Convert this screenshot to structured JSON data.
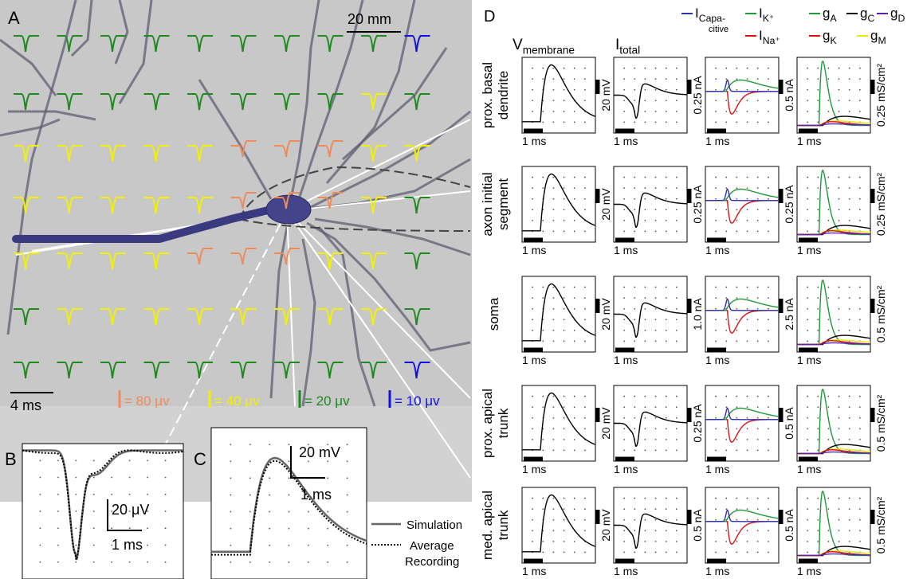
{
  "panel_a": {
    "label": "A",
    "scale_length": "20 mm",
    "scale_time": "4 ms",
    "amplitude_scales": [
      {
        "label": "= 80 μv",
        "color": "#f08a5a"
      },
      {
        "label": "= 40 μv",
        "color": "#f2f200"
      },
      {
        "label": "= 20 μv",
        "color": "#1e8a1e"
      },
      {
        "label": "= 10 μv",
        "color": "#1010e0"
      }
    ]
  },
  "panel_b": {
    "label": "B",
    "scale_amplitude": "20 μV",
    "scale_time": "1 ms"
  },
  "panel_c": {
    "label": "C",
    "scale_amplitude": "20 mV",
    "scale_time": "1 ms"
  },
  "legend_bc": {
    "simulation": "Simulation",
    "recording": [
      "Average",
      "Recording"
    ]
  },
  "panel_d": {
    "label": "D",
    "time_scale": "1 ms",
    "columns": [
      {
        "main": "V",
        "sub": "membrane"
      },
      {
        "main": "I",
        "sub": "total"
      }
    ],
    "legend": [
      {
        "main": "I",
        "sub": "Capa-",
        "sub2": "citive",
        "color": "#3030b0"
      },
      {
        "main": "I",
        "sub": "K⁺",
        "color": "#1e9a3a"
      },
      {
        "main": "I",
        "sub": "Na⁺",
        "color": "#e01010"
      },
      {
        "main": "g",
        "sub": "A",
        "color": "#1e9a3a"
      },
      {
        "main": "g",
        "sub": "C",
        "color": "#000000"
      },
      {
        "main": "g",
        "sub": "D",
        "color": "#6020b0"
      },
      {
        "main": "g",
        "sub": "K",
        "color": "#e01010"
      },
      {
        "main": "g",
        "sub": "M",
        "color": "#e8e800"
      }
    ],
    "rows": [
      {
        "label": [
          "prox. basal",
          "dendrite"
        ],
        "scales": [
          "20 mV",
          "0.25 nA",
          "0.5 nA",
          "0.25 mS/cm²"
        ]
      },
      {
        "label": [
          "axon initial",
          "segment"
        ],
        "scales": [
          "20 mV",
          "0.25 nA",
          "0.25 nA",
          "0.25 mS/cm²"
        ]
      },
      {
        "label": [
          "soma"
        ],
        "scales": [
          "20 mV",
          "1.0 nA",
          "2.5 nA",
          "0.5 mS/cm²"
        ]
      },
      {
        "label": [
          "prox. apical",
          "trunk"
        ],
        "scales": [
          "20 mV",
          "0.25 nA",
          "0.5 nA",
          "0.5 mS/cm²"
        ]
      },
      {
        "label": [
          "med. apical",
          "trunk"
        ],
        "scales": [
          "20 mV",
          "0.5 nA",
          "0.5 nA",
          "0.5 mS/cm²"
        ]
      }
    ]
  }
}
